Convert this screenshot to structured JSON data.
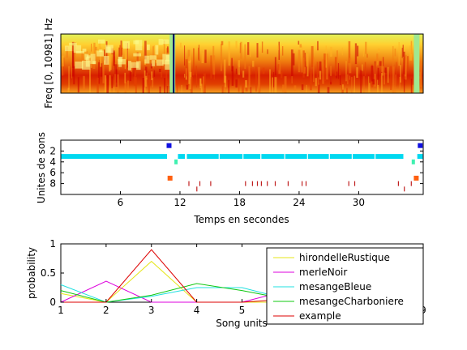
{
  "chart_data": [
    {
      "type": "heatmap",
      "ylabel": "Freq [0, 10981] Hz",
      "colors": [
        "#cc0000",
        "#e64000",
        "#f47a10",
        "#ffb020",
        "#ffe84a",
        "#fcfc90",
        "#9fe890"
      ],
      "dropout_times": [
        11.2,
        35.8
      ],
      "x_range": [
        0,
        36.5
      ]
    },
    {
      "type": "scatter",
      "xlabel": "Temps en secondes",
      "ylabel": "Unites de sons",
      "x_ticks": [
        6,
        12,
        18,
        24,
        30
      ],
      "y_ticks": [
        2,
        4,
        6,
        8
      ],
      "xlim": [
        0,
        36.5
      ],
      "ylim": [
        10,
        0
      ],
      "unit_colors": {
        "1": "#1010e0",
        "2": "#00c8f0",
        "3": "#00d8f0",
        "4": "#40f0b0",
        "7": "#ff6010",
        "8": "#c02020",
        "9": "#c02020"
      },
      "unit3_gaps": [
        [
          10.7,
          11.8
        ],
        [
          12.5,
          12.7
        ],
        [
          15.9,
          16.0
        ],
        [
          18.3,
          18.4
        ],
        [
          20.1,
          20.2
        ],
        [
          22.5,
          22.6
        ],
        [
          24.8,
          24.9
        ],
        [
          27.0,
          27.1
        ],
        [
          29.3,
          29.4
        ],
        [
          31.6,
          31.7
        ],
        [
          34.5,
          35.9
        ]
      ],
      "unit4_points": [
        11.6,
        35.5
      ],
      "unit1_points": [
        10.9,
        36.2
      ],
      "unit7_points": [
        11.0,
        35.8
      ],
      "unit8_points": [
        12.9,
        14.0,
        15.1,
        18.6,
        19.3,
        19.8,
        20.2,
        20.8,
        21.6,
        22.9,
        24.3,
        24.7,
        29.0,
        29.6,
        34.0,
        35.3
      ],
      "unit9_points": [
        13.7,
        34.6
      ]
    },
    {
      "type": "line",
      "xlabel": "Song units",
      "ylabel": "probability",
      "x": [
        1,
        2,
        3,
        4,
        5,
        6,
        7,
        8,
        9
      ],
      "x_ticks": [
        1,
        2,
        3,
        4,
        5,
        9
      ],
      "y_ticks": [
        0,
        0.5,
        1
      ],
      "ylim": [
        0,
        1
      ],
      "xlim": [
        1,
        9
      ],
      "legend_position": "center-right",
      "series": [
        {
          "name": "hirondelleRustique",
          "color": "#e6e61a",
          "values": [
            0.15,
            0.0,
            0.7,
            0.0,
            0.0,
            0.0,
            0.1,
            0.05,
            0.0
          ]
        },
        {
          "name": "merleNoir",
          "color": "#dd00dd",
          "values": [
            0.0,
            0.36,
            0.0,
            0.0,
            0.0,
            0.2,
            0.0,
            0.1,
            0.0
          ]
        },
        {
          "name": "mesangeBleue",
          "color": "#20e0e0",
          "values": [
            0.3,
            0.0,
            0.1,
            0.25,
            0.25,
            0.05,
            0.1,
            0.2,
            0.0
          ]
        },
        {
          "name": "mesangeCharboniere",
          "color": "#10c810",
          "values": [
            0.2,
            0.0,
            0.12,
            0.32,
            0.2,
            0.05,
            0.08,
            0.1,
            0.18
          ]
        },
        {
          "name": "example",
          "color": "#dd0000",
          "values": [
            0.0,
            0.0,
            0.9,
            0.0,
            0.0,
            0.05,
            0.0,
            0.02,
            0.0
          ]
        }
      ]
    }
  ]
}
